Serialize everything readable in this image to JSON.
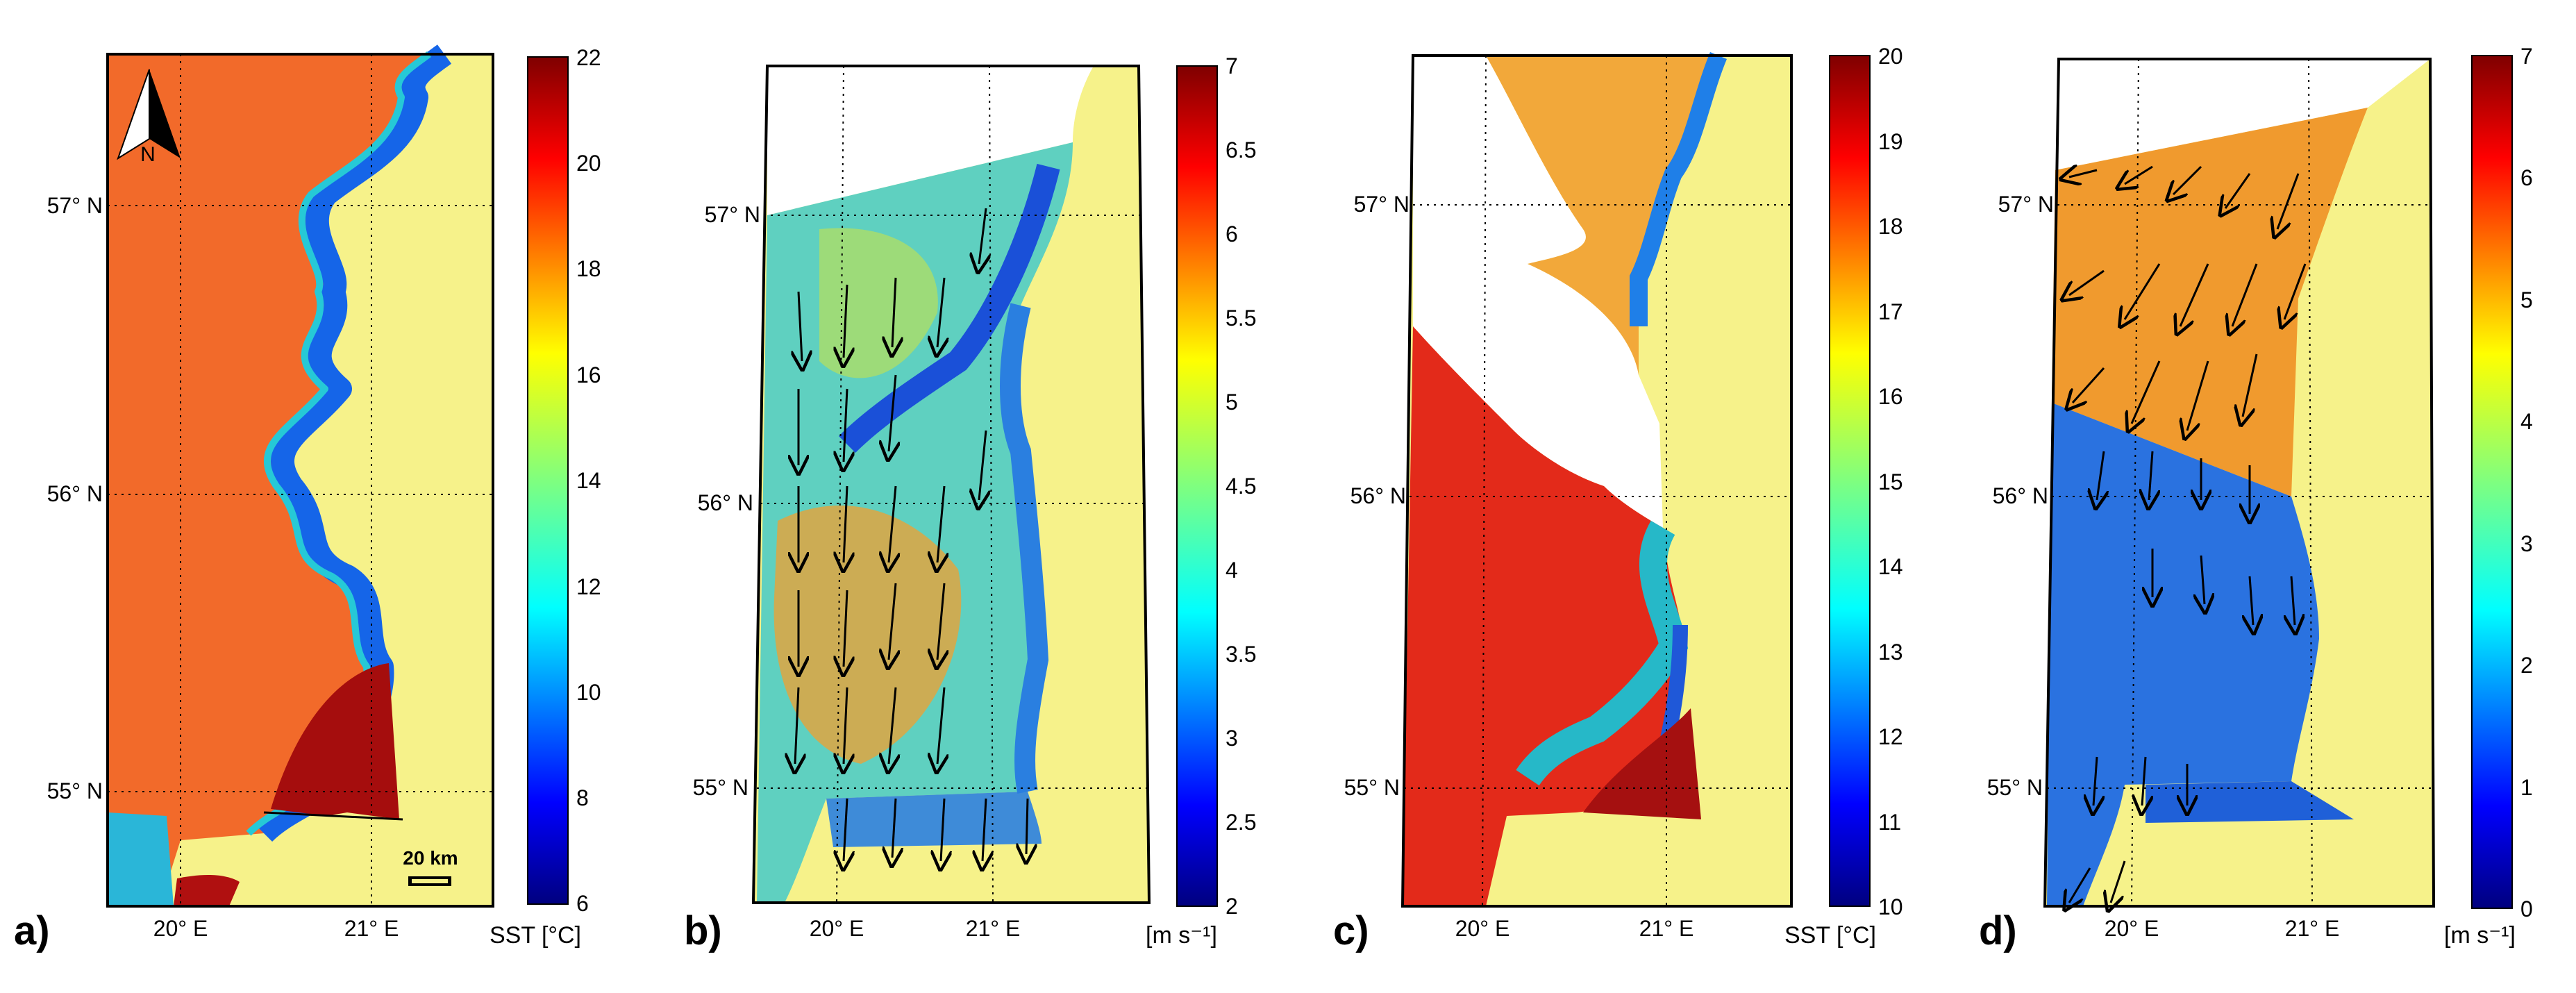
{
  "panels": [
    {
      "label": "a)",
      "lat_labels": [
        "57° N",
        "56° N",
        "55° N"
      ],
      "lon_labels": [
        "20° E",
        "21° E"
      ],
      "scale_bar": "20 km",
      "north_arrow": "N",
      "colorbar": {
        "ticks": [
          "22",
          "20",
          "18",
          "16",
          "14",
          "12",
          "10",
          "8",
          "6"
        ],
        "title": "SST [°C]",
        "palette": "jet"
      }
    },
    {
      "label": "b)",
      "lat_labels": [
        "57° N",
        "56° N",
        "55° N"
      ],
      "lon_labels": [
        "20° E",
        "21° E"
      ],
      "colorbar": {
        "ticks": [
          "7",
          "6.5",
          "6",
          "5.5",
          "5",
          "4.5",
          "4",
          "3.5",
          "3",
          "2.5",
          "2"
        ],
        "title": "[m s⁻¹]",
        "palette": "jet"
      }
    },
    {
      "label": "c)",
      "lat_labels": [
        "57° N",
        "56° N",
        "55° N"
      ],
      "lon_labels": [
        "20° E",
        "21° E"
      ],
      "colorbar": {
        "ticks": [
          "20",
          "19",
          "18",
          "17",
          "16",
          "15",
          "14",
          "13",
          "12",
          "11",
          "10"
        ],
        "title": "SST [°C]",
        "palette": "jet"
      }
    },
    {
      "label": "d)",
      "lat_labels": [
        "57° N",
        "56° N",
        "55° N"
      ],
      "lon_labels": [
        "20° E",
        "21° E"
      ],
      "colorbar": {
        "ticks": [
          "7",
          "6",
          "5",
          "4",
          "3",
          "2",
          "1",
          "0"
        ],
        "title": "[m s⁻¹]",
        "palette": "jet"
      }
    }
  ],
  "colors": {
    "land": "#f6f28a",
    "frame": "#000000",
    "jet_low": "#00007f",
    "jet_high": "#7f0000"
  }
}
